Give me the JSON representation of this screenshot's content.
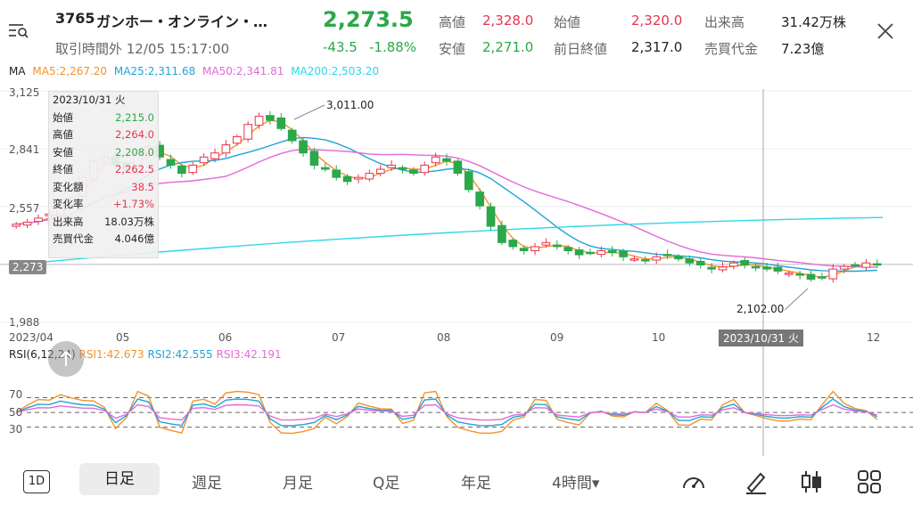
{
  "header": {
    "code": "3765",
    "name": "ガンホー・オンライン・…",
    "menu_icon": "list-search-icon",
    "close_icon": "close-icon",
    "status": "取引時間外 12/05 15:17:00",
    "price": "2,273.5",
    "change": "-43.5",
    "change_pct": "-1.88%",
    "stats": [
      {
        "label": "高値",
        "value": "2,328.0",
        "color": "#e8344e"
      },
      {
        "label": "始値",
        "value": "2,320.0",
        "color": "#e8344e"
      },
      {
        "label": "出来高",
        "value": "31.42万株",
        "color": "#222222"
      },
      {
        "label": "安値",
        "value": "2,271.0",
        "color": "#2aa84a"
      },
      {
        "label": "前日終値",
        "value": "2,317.0",
        "color": "#222222"
      },
      {
        "label": "売買代金",
        "value": "7.23億",
        "color": "#222222"
      }
    ]
  },
  "ma_legend": {
    "title": "MA",
    "items": [
      {
        "text": "MA5:2,267.20",
        "color": "#f5922a"
      },
      {
        "text": "MA25:2,311.68",
        "color": "#1fa4d8"
      },
      {
        "text": "MA50:2,341.81",
        "color": "#e26ad8"
      },
      {
        "text": "MA200:2,503.20",
        "color": "#2bd8e6"
      }
    ]
  },
  "y_ticks": [
    "3,125",
    "2,841",
    "2,557",
    "2,273",
    "1,988"
  ],
  "current_price_tag": "2,273",
  "x_ticks": [
    "2023/04",
    "05",
    "06",
    "07",
    "08",
    "09",
    "10",
    "12"
  ],
  "crosshair_date": "2023/10/31 火",
  "annotations": {
    "high": "3,011.00",
    "low": "2,102.00"
  },
  "tooltip": {
    "date": "2023/10/31 火",
    "rows": [
      {
        "label": "始値",
        "value": "2,215.0",
        "color": "#2aa84a"
      },
      {
        "label": "高値",
        "value": "2,264.0",
        "color": "#e8344e"
      },
      {
        "label": "安値",
        "value": "2,208.0",
        "color": "#2aa84a"
      },
      {
        "label": "終値",
        "value": "2,262.5",
        "color": "#e8344e"
      },
      {
        "label": "変化額",
        "value": "38.5",
        "color": "#e8344e"
      },
      {
        "label": "変化率",
        "value": "+1.73%",
        "color": "#e8344e"
      },
      {
        "label": "出来高",
        "value": "18.03万株",
        "color": "#222222"
      },
      {
        "label": "売買代金",
        "value": "4.046億",
        "color": "#222222"
      }
    ]
  },
  "rsi_legend": {
    "title": "RSI(6,12,24)",
    "items": [
      {
        "text": "RSI1:42.673",
        "color": "#f5922a"
      },
      {
        "text": "RSI2:42.555",
        "color": "#1fa4d8"
      },
      {
        "text": "RSI3:42.191",
        "color": "#e26ad8"
      }
    ]
  },
  "rsi_ticks": [
    "70",
    "50",
    "30"
  ],
  "bottom_bar": {
    "tabs": [
      {
        "label": "1D",
        "active": false
      },
      {
        "label": "日足",
        "active": true
      },
      {
        "label": "週足",
        "active": false
      },
      {
        "label": "月足",
        "active": false
      },
      {
        "label": "Q足",
        "active": false
      },
      {
        "label": "年足",
        "active": false
      },
      {
        "label": "4時間▾",
        "active": false
      }
    ],
    "icons": [
      "speedometer-icon",
      "pen-icon",
      "candle-type-icon",
      "grid-icon"
    ]
  },
  "chart_data": {
    "type": "candlestick",
    "price_axis": {
      "ticks": [
        3125,
        2841,
        2557,
        2273,
        1988
      ],
      "ylim": [
        1988,
        3125
      ]
    },
    "x_ticks": [
      "2023/04",
      "05",
      "06",
      "07",
      "08",
      "09",
      "10",
      "12"
    ],
    "annotated_high": 3011.0,
    "annotated_low": 2102.0,
    "series": [
      {
        "name": "MA5",
        "last": 2267.2
      },
      {
        "name": "MA25",
        "last": 2311.68
      },
      {
        "name": "MA50",
        "last": 2341.81
      },
      {
        "name": "MA200",
        "last": 2503.2
      }
    ],
    "closes_approx": [
      2470,
      2480,
      2500,
      2520,
      2560,
      2600,
      2700,
      2780,
      2800,
      2760,
      2740,
      2820,
      2850,
      2800,
      2760,
      2720,
      2760,
      2800,
      2820,
      2860,
      2900,
      2960,
      3000,
      2980,
      2940,
      2880,
      2820,
      2760,
      2740,
      2700,
      2680,
      2700,
      2720,
      2740,
      2760,
      2740,
      2720,
      2760,
      2800,
      2780,
      2720,
      2640,
      2560,
      2460,
      2380,
      2360,
      2340,
      2360,
      2380,
      2360,
      2340,
      2320,
      2330,
      2340,
      2330,
      2310,
      2300,
      2290,
      2310,
      2320,
      2300,
      2280,
      2270,
      2250,
      2260,
      2280,
      2270,
      2260,
      2250,
      2240,
      2230,
      2220,
      2200,
      2210,
      2250,
      2263,
      2270,
      2280,
      2274
    ],
    "rsi": {
      "levels": [
        70,
        50,
        30
      ],
      "RSI1": 42.673,
      "RSI2": 42.555,
      "RSI3": 42.191
    }
  }
}
